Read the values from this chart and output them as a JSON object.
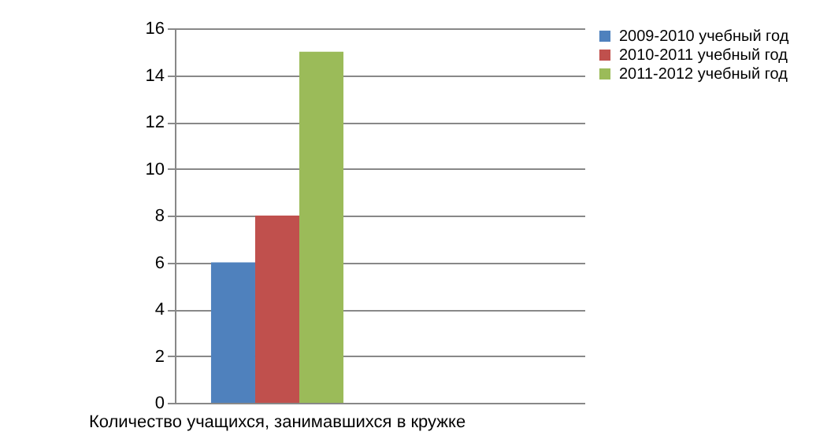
{
  "chart_data": {
    "type": "bar",
    "categories": [
      "Количество учащихся, занимавшихся в кружке",
      null
    ],
    "series": [
      {
        "name": "2009-2010 учебный год",
        "color": "#4f81bd",
        "values": [
          6,
          null
        ]
      },
      {
        "name": "2010-2011 учебный год",
        "color": "#c0504d",
        "values": [
          8,
          null
        ]
      },
      {
        "name": "2011-2012 учебный год",
        "color": "#9bbb59",
        "values": [
          15,
          null
        ]
      }
    ],
    "ylim": [
      0,
      16
    ],
    "yticks": [
      0,
      2,
      4,
      6,
      8,
      10,
      12,
      14,
      16
    ],
    "grid": "y",
    "legend": "right"
  }
}
